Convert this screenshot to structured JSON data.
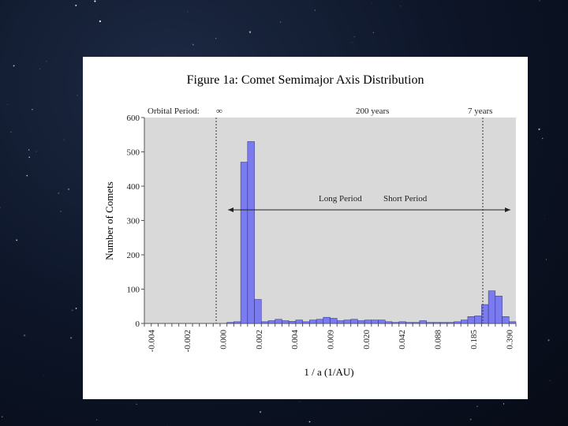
{
  "slide": {
    "background": "starry night sky"
  },
  "chart_data": {
    "type": "bar",
    "title": "Figure 1a:  Comet Semimajor Axis Distribution",
    "xlabel": "1 / a  (1/AU)",
    "ylabel": "Number of Comets",
    "ylim": [
      0,
      600
    ],
    "y_ticks": [
      0,
      100,
      200,
      300,
      400,
      500,
      600
    ],
    "x_tick_labels": [
      "-0.004",
      "-0.002",
      "0.000",
      "0.002",
      "0.004",
      "0.009",
      "0.020",
      "0.042",
      "0.088",
      "0.185",
      "0.390"
    ],
    "grid": false,
    "bar_color": "#7b7bf0",
    "plot_background": "#d9d9d9",
    "values": [
      0,
      0,
      0,
      0,
      0,
      0,
      0,
      0,
      0,
      0,
      0,
      0,
      3,
      5,
      470,
      530,
      70,
      5,
      8,
      12,
      8,
      6,
      10,
      5,
      10,
      12,
      18,
      15,
      8,
      10,
      12,
      8,
      10,
      10,
      10,
      5,
      3,
      5,
      3,
      3,
      8,
      3,
      3,
      3,
      3,
      5,
      10,
      20,
      22,
      55,
      95,
      80,
      20,
      5
    ],
    "annotations": {
      "orbital_period_label": "Orbital Period:",
      "infinity_label": "∞",
      "period_200": "200 years",
      "period_7": "7 years",
      "long_period": "Long Period",
      "short_period": "Short Period"
    }
  }
}
